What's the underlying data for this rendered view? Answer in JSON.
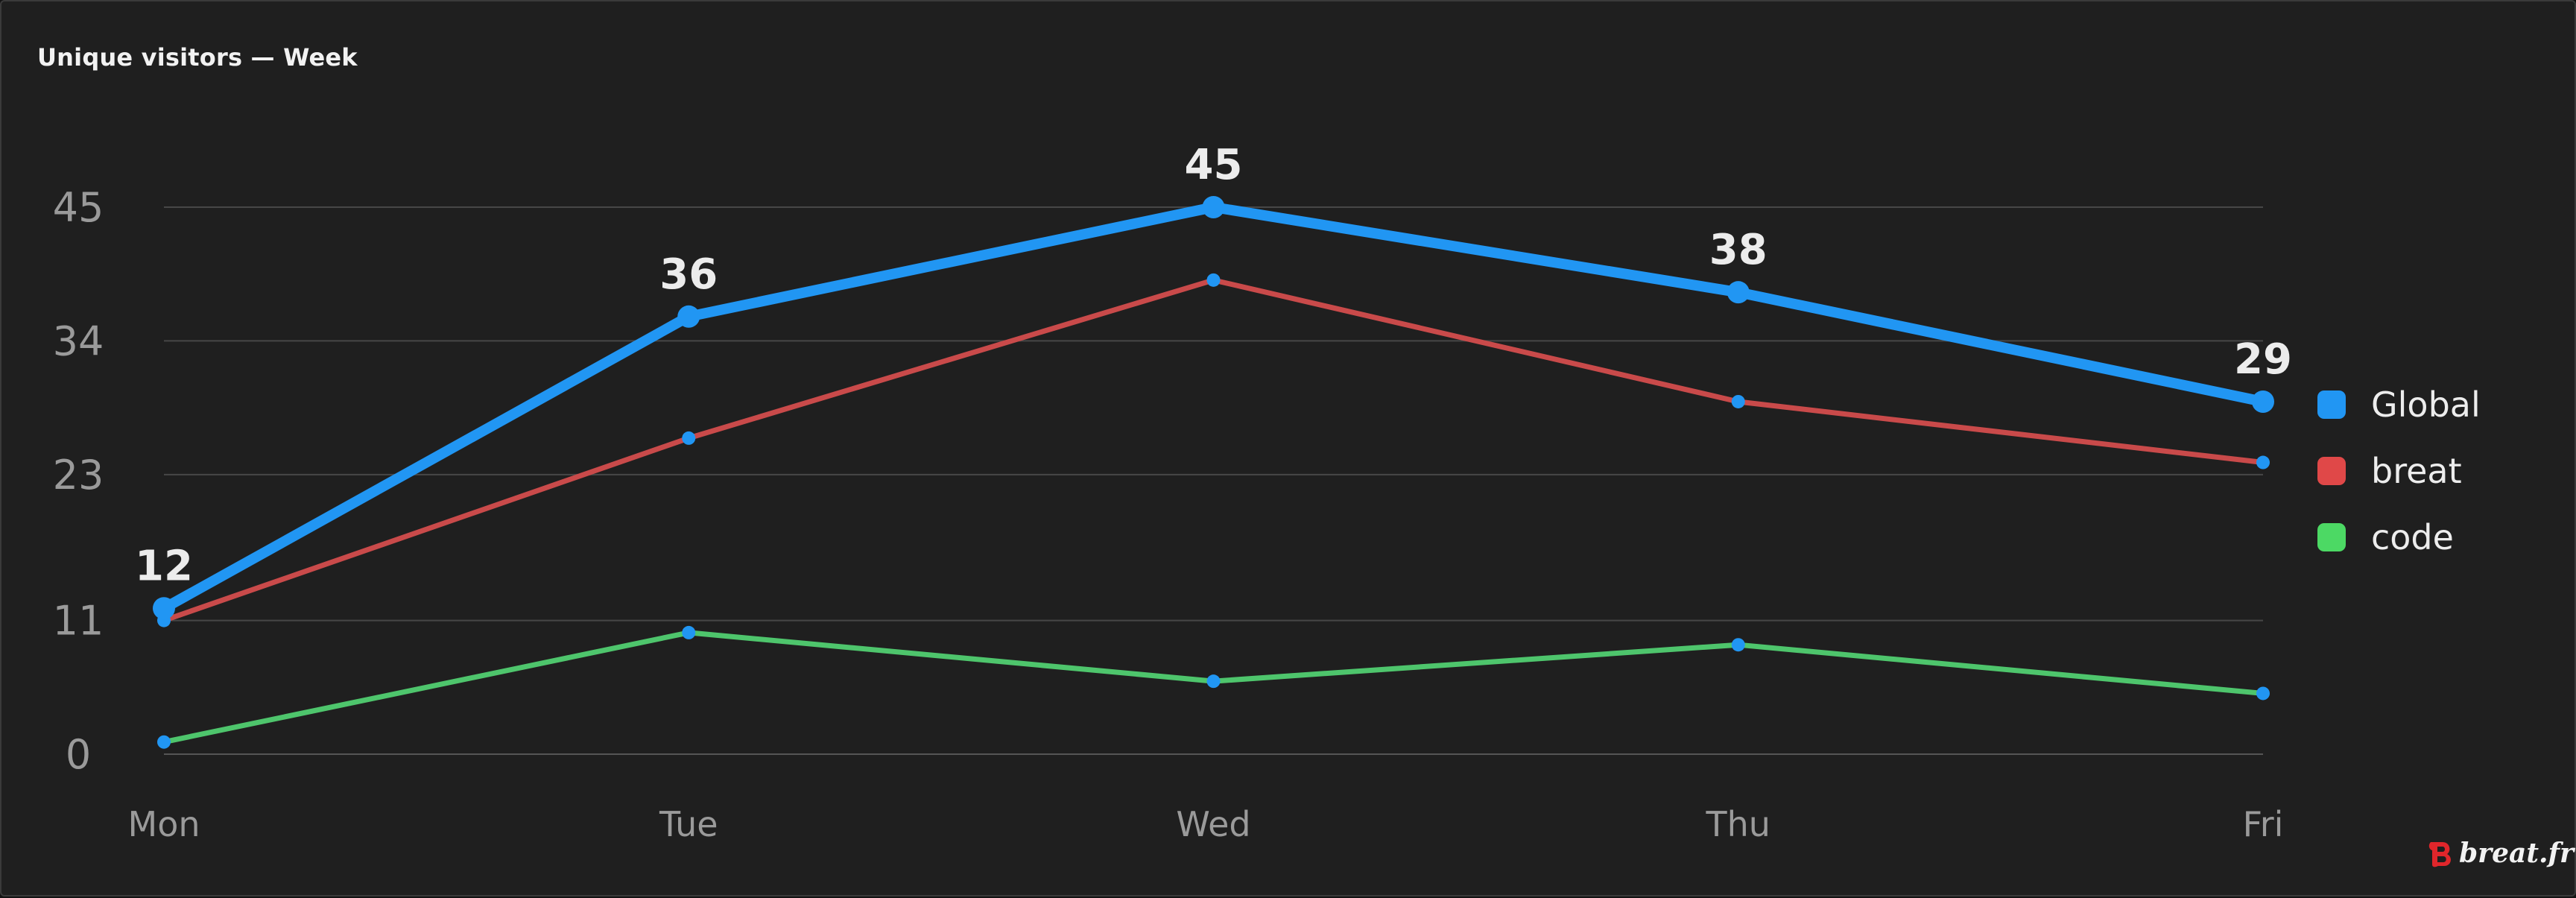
{
  "chart_data": {
    "type": "line",
    "title": "Unique visitors — Week",
    "categories": [
      "Mon",
      "Tue",
      "Wed",
      "Thu",
      "Fri"
    ],
    "y_ticks": [
      0,
      11,
      23,
      34,
      45
    ],
    "ylim": [
      0,
      45
    ],
    "grid": true,
    "legend_position": "right",
    "series": [
      {
        "name": "Global",
        "values": [
          12,
          36,
          45,
          38,
          29
        ],
        "color": "#2196f3",
        "data_labels": [
          "12",
          "36",
          "45",
          "38",
          "29"
        ]
      },
      {
        "name": "breat",
        "values": [
          11,
          26,
          39,
          29,
          24
        ],
        "color": "#c94a4a"
      },
      {
        "name": "code",
        "values": [
          1,
          10,
          6,
          9,
          5
        ],
        "color": "#4ec56c"
      }
    ]
  },
  "legend": {
    "items": [
      {
        "label": "Global",
        "color": "#2196f3"
      },
      {
        "label": "breat",
        "color": "#e04848"
      },
      {
        "label": "code",
        "color": "#4cd964"
      }
    ]
  },
  "watermark": {
    "text": "breat.fr",
    "icon": "breat-logo-icon",
    "color": "#e0262b"
  }
}
